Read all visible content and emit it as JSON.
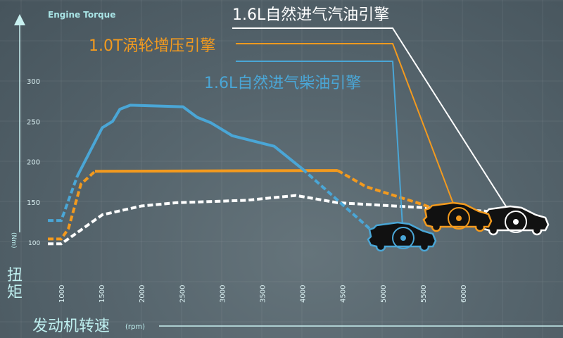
{
  "chart_data": {
    "type": "line",
    "title": "Engine Torque",
    "xlabel": "发动机转速",
    "xunit": "(rpm)",
    "ylabel": "扭矩",
    "yunit": "(Nm)",
    "xlim": [
      830,
      6400
    ],
    "ylim": [
      100,
      300
    ],
    "x_ticks": [
      1000,
      1500,
      2000,
      2500,
      3000,
      3500,
      4000,
      4500,
      5000,
      5500,
      6000
    ],
    "y_ticks": [
      100,
      150,
      200,
      250,
      300
    ],
    "grid": true,
    "legend_placement": "top-right",
    "series": [
      {
        "name": "1.6L自然进气汽油引擎",
        "color": "#ffffff",
        "style": "dashed",
        "x": [
          834,
          1000,
          1200,
          1510,
          2000,
          2430,
          3300,
          3920,
          4440,
          5140,
          6370
        ],
        "y": [
          98,
          98,
          112,
          134,
          145,
          149,
          152,
          158,
          149,
          145,
          138
        ]
      },
      {
        "name": "1.0T涡轮增压引擎",
        "color": "#f39a1e",
        "style": "solid-with-dashed-ends",
        "x": [
          834,
          1000,
          1090,
          1245,
          1420,
          4440,
          4790,
          5490,
          5840
        ],
        "y": [
          104,
          104,
          117,
          172,
          188,
          189,
          169,
          147,
          134
        ]
      },
      {
        "name": "1.6L自然进气柴油引擎",
        "color": "#4aa6d6",
        "style": "solid-with-dashed-ends",
        "x": [
          834,
          1000,
          1200,
          1510,
          1640,
          1730,
          1860,
          2515,
          2690,
          2865,
          3130,
          3650,
          4000,
          4440,
          4835
        ],
        "y": [
          127,
          127,
          182,
          242,
          250,
          265,
          270,
          268,
          255,
          248,
          232,
          219,
          191,
          152,
          117
        ]
      }
    ]
  }
}
